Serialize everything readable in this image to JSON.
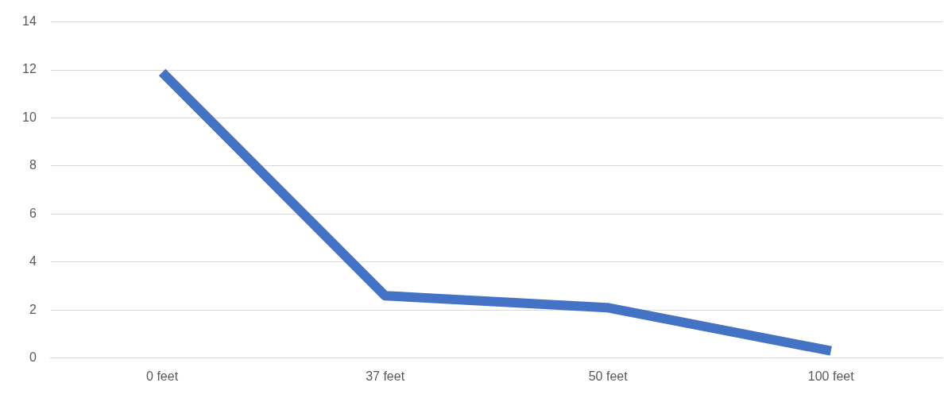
{
  "chart_data": {
    "type": "line",
    "categories": [
      "0 feet",
      "37 feet",
      "50 feet",
      "100 feet"
    ],
    "series": [
      {
        "color": "#4472c4",
        "values": [
          11.9,
          2.6,
          2.1,
          0.3
        ]
      }
    ],
    "ylim": [
      0,
      14
    ],
    "yticks": [
      0,
      2,
      4,
      6,
      8,
      10,
      12,
      14
    ],
    "grid": "y",
    "legend": false,
    "marker": "none",
    "line_style": "solid"
  }
}
